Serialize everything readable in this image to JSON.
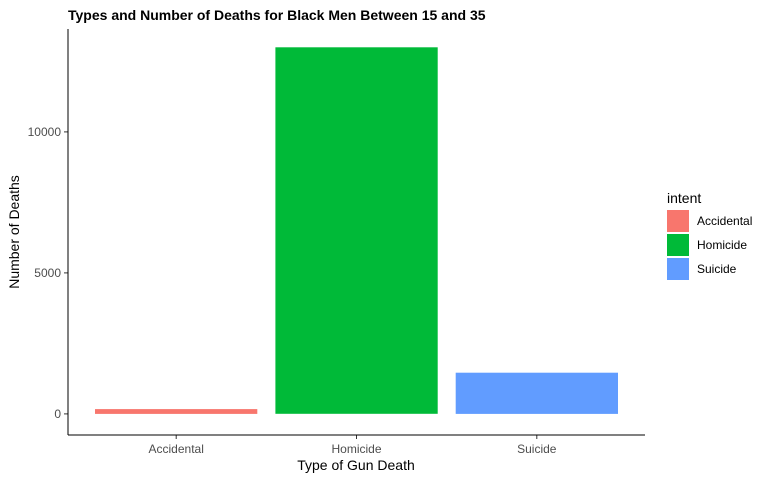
{
  "chart_data": {
    "type": "bar",
    "title": "Types and Number of Deaths for Black Men Between 15 and 35",
    "xlabel": "Type of Gun Death",
    "ylabel": "Number of Deaths",
    "categories": [
      "Accidental",
      "Homicide",
      "Suicide"
    ],
    "values": [
      170,
      13000,
      1460
    ],
    "colors": [
      "#F8766D",
      "#00BA38",
      "#619CFF"
    ],
    "ylim": [
      -750,
      13650
    ],
    "yticks": [
      0,
      5000,
      10000
    ],
    "ytick_labels": [
      "0",
      "5000",
      "10000"
    ],
    "grid": false,
    "legend": {
      "title": "intent",
      "placement": "right",
      "entries": [
        "Accidental",
        "Homicide",
        "Suicide"
      ]
    }
  }
}
